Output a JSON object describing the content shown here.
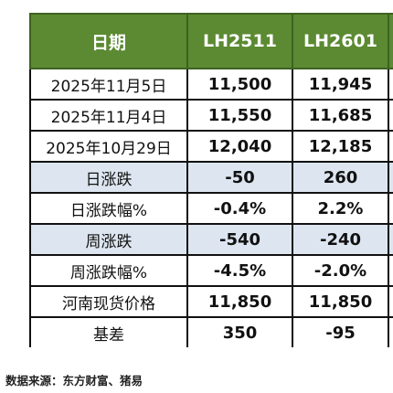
{
  "table": {
    "headers": [
      "日期",
      "LH2511",
      "LH2601"
    ],
    "rows": [
      {
        "label": "2025年11月5日",
        "a": "11,500",
        "b": "11,945",
        "a_tone": "plain",
        "b_tone": "plain",
        "shaded": false
      },
      {
        "label": "2025年11月4日",
        "a": "11,550",
        "b": "11,685",
        "a_tone": "plain",
        "b_tone": "plain",
        "shaded": false
      },
      {
        "label": "2025年10月29日",
        "a": "12,040",
        "b": "12,185",
        "a_tone": "plain",
        "b_tone": "plain",
        "shaded": false
      },
      {
        "label": "日涨跌",
        "a": "-50",
        "b": "260",
        "a_tone": "neg",
        "b_tone": "pos",
        "shaded": true
      },
      {
        "label": "日涨跌幅%",
        "a": "-0.4%",
        "b": "2.2%",
        "a_tone": "neg",
        "b_tone": "pos",
        "shaded": false
      },
      {
        "label": "周涨跌",
        "a": "-540",
        "b": "-240",
        "a_tone": "neg",
        "b_tone": "neg",
        "shaded": true
      },
      {
        "label": "周涨跌幅%",
        "a": "-4.5%",
        "b": "-2.0%",
        "a_tone": "neg",
        "b_tone": "neg",
        "shaded": false
      },
      {
        "label": "河南现货价格",
        "a": "11,850",
        "b": "11,850",
        "a_tone": "plain",
        "b_tone": "plain",
        "shaded": false
      },
      {
        "label": "基差",
        "a": "350",
        "b": "-95",
        "a_tone": "pos",
        "b_tone": "neg",
        "shaded": false
      }
    ]
  },
  "source": "数据来源：东方财富、猪易",
  "colors": {
    "header_bg": "#5b8a32",
    "shaded_row_bg": "#dde6f0",
    "positive": "#e01010",
    "negative": "#1fad1f"
  }
}
